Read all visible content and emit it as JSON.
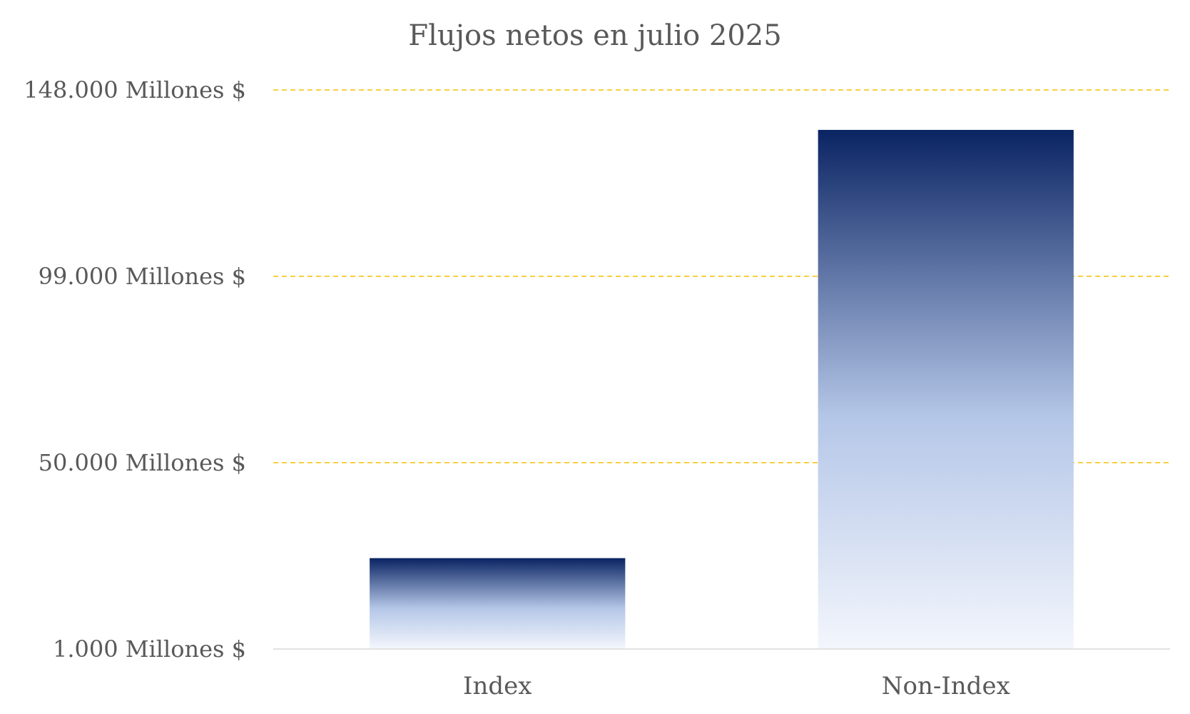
{
  "chart_data": {
    "type": "bar",
    "title": "Flujos netos en julio 2025",
    "xlabel": "",
    "ylabel": "",
    "categories": [
      "Index",
      "Non-Index"
    ],
    "values": [
      24900,
      137500
    ],
    "ylim": [
      1000,
      148000
    ],
    "yticks": [
      1000,
      50000,
      99000,
      148000
    ],
    "ytick_labels": [
      "1.000 Millones $",
      "50.000 Millones $",
      "99.000 Millones $",
      "148.000 Millones $"
    ],
    "grid": "horizontal dashed",
    "legend": "none",
    "colors": {
      "bar_top": "#0a2463",
      "bar_mid": "#b4c6e7",
      "bar_bottom": "#f3f6fc",
      "gridline": "#f5c000",
      "axis": "#d9d9d9",
      "text": "#595959"
    }
  }
}
